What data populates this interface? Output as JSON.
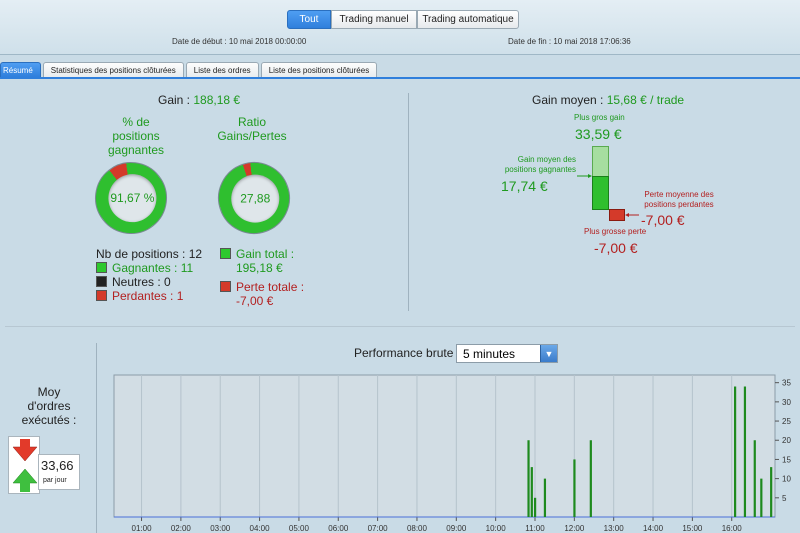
{
  "header": {
    "filters": [
      {
        "label": "Tout",
        "active": true
      },
      {
        "label": "Trading manuel",
        "active": false
      },
      {
        "label": "Trading automatique",
        "active": false
      }
    ],
    "start_date": "Date de début : 10 mai 2018 00:00:00",
    "end_date": "Date de fin : 10 mai 2018 17:06:36"
  },
  "tabs": [
    {
      "label": "Résumé",
      "active": true
    },
    {
      "label": "Statistiques des positions clôturées",
      "active": false
    },
    {
      "label": "Liste des ordres",
      "active": false
    },
    {
      "label": "Liste des positions clôturées",
      "active": false
    }
  ],
  "summary": {
    "gain_label": "Gain :",
    "gain_value": "188,18 €",
    "pct_title": "% de\npositions\ngagnantes",
    "pct_value": "91,67 %",
    "pct_fraction": 0.9167,
    "ratio_title": "Ratio\nGains/Pertes",
    "ratio_value": "27,88",
    "ratio_fraction": 0.965,
    "nb_positions": "Nb de positions : 12",
    "gagnantes": "Gagnantes : 11",
    "neutres": "Neutres : 0",
    "perdantes": "Perdantes : 1",
    "gain_total_label": "Gain total :",
    "gain_total_value": "195,18 €",
    "perte_totale_label": "Perte totale :",
    "perte_totale_value": "-7,00 €"
  },
  "average": {
    "title": "Gain moyen :",
    "value": "15,68 € / trade",
    "best_label": "Plus gros gain",
    "best_value": "33,59 €",
    "avg_win_label": "Gain moyen des\npositions gagnantes",
    "avg_win_value": "17,74 €",
    "avg_loss_label": "Perte moyenne des\npositions perdantes",
    "avg_loss_value": "-7,00 €",
    "worst_label": "Plus grosse perte",
    "worst_value": "-7,00 €"
  },
  "orders": {
    "title": "Moy\nd'ordres\nexécutés :",
    "value": "33,66",
    "unit": "par jour"
  },
  "performance": {
    "title": "Performance brute",
    "interval": "5 minutes"
  },
  "colors": {
    "green": "#1f9a1f",
    "red": "#b32020",
    "accent": "#2f7fdc",
    "bar_green": "#1e8a1e"
  },
  "chart_data": {
    "type": "bar",
    "x_ticks": [
      "01:00",
      "02:00",
      "03:00",
      "04:00",
      "05:00",
      "06:00",
      "07:00",
      "08:00",
      "09:00",
      "10:00",
      "11:00",
      "12:00",
      "13:00",
      "14:00",
      "15:00",
      "16:00"
    ],
    "y_ticks": [
      5,
      10,
      15,
      20,
      25,
      30,
      35
    ],
    "ylim": [
      0,
      37
    ],
    "x_range_hours": [
      0.3,
      17.1
    ],
    "x": [
      "10:50",
      "10:55",
      "11:00",
      "11:15",
      "12:00",
      "12:25",
      "16:05",
      "16:20",
      "16:35",
      "16:45",
      "17:00"
    ],
    "values": [
      20,
      13,
      5,
      10,
      15,
      20,
      34,
      34,
      20,
      10,
      13
    ]
  }
}
